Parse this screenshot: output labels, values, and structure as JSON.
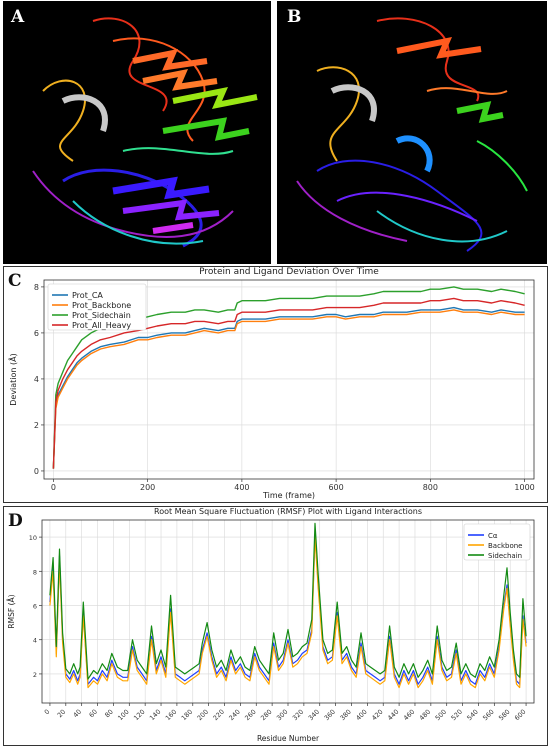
{
  "panels": {
    "a_label": "A",
    "b_label": "B",
    "c_label": "C",
    "d_label": "D"
  },
  "chart_data": [
    {
      "type": "line",
      "title": "Protein and Ligand Deviation Over Time",
      "xlabel": "Time (frame)",
      "ylabel": "Deviation (Å)",
      "xlim": [
        -20,
        1020
      ],
      "ylim": [
        -0.35,
        8.3
      ],
      "xticks": [
        "0",
        "200",
        "400",
        "600",
        "800",
        "1000"
      ],
      "yticks": [
        "0",
        "2",
        "4",
        "6",
        "8"
      ],
      "grid": true,
      "legend": "top-left",
      "x": [
        0,
        5,
        10,
        20,
        30,
        40,
        50,
        60,
        80,
        100,
        120,
        150,
        180,
        200,
        220,
        250,
        280,
        300,
        320,
        350,
        370,
        385,
        390,
        400,
        420,
        450,
        480,
        500,
        520,
        550,
        580,
        600,
        620,
        650,
        680,
        700,
        720,
        750,
        780,
        800,
        820,
        850,
        870,
        900,
        930,
        950,
        980,
        1000
      ],
      "series": [
        {
          "name": "Prot_CA",
          "color": "#1f77b4",
          "values": [
            0.1,
            2.8,
            3.3,
            3.7,
            4.1,
            4.4,
            4.7,
            4.9,
            5.2,
            5.4,
            5.5,
            5.6,
            5.8,
            5.8,
            5.9,
            6.0,
            6.0,
            6.1,
            6.2,
            6.1,
            6.2,
            6.2,
            6.5,
            6.6,
            6.6,
            6.6,
            6.7,
            6.7,
            6.7,
            6.7,
            6.8,
            6.8,
            6.7,
            6.8,
            6.8,
            6.9,
            6.9,
            6.9,
            7.0,
            7.0,
            7.0,
            7.1,
            7.0,
            7.0,
            6.9,
            7.0,
            6.9,
            6.9
          ]
        },
        {
          "name": "Prot_Backbone",
          "color": "#ff7f0e",
          "values": [
            0.1,
            2.7,
            3.2,
            3.6,
            4.0,
            4.3,
            4.6,
            4.8,
            5.1,
            5.3,
            5.4,
            5.5,
            5.7,
            5.7,
            5.8,
            5.9,
            5.9,
            6.0,
            6.1,
            6.0,
            6.1,
            6.1,
            6.4,
            6.5,
            6.5,
            6.5,
            6.6,
            6.6,
            6.6,
            6.6,
            6.7,
            6.7,
            6.6,
            6.7,
            6.7,
            6.8,
            6.8,
            6.8,
            6.9,
            6.9,
            6.9,
            7.0,
            6.9,
            6.9,
            6.8,
            6.9,
            6.8,
            6.8
          ]
        },
        {
          "name": "Prot_Sidechain",
          "color": "#2ca02c",
          "values": [
            0.1,
            3.3,
            3.8,
            4.3,
            4.8,
            5.1,
            5.4,
            5.7,
            6.0,
            6.2,
            6.3,
            6.5,
            6.6,
            6.7,
            6.8,
            6.9,
            6.9,
            7.0,
            7.0,
            6.9,
            7.0,
            7.0,
            7.3,
            7.4,
            7.4,
            7.4,
            7.5,
            7.5,
            7.5,
            7.5,
            7.6,
            7.6,
            7.6,
            7.6,
            7.7,
            7.8,
            7.8,
            7.8,
            7.8,
            7.9,
            7.9,
            8.0,
            7.9,
            7.9,
            7.8,
            7.9,
            7.8,
            7.7
          ]
        },
        {
          "name": "Prot_All_Heavy",
          "color": "#d62728",
          "values": [
            0.1,
            3.0,
            3.5,
            4.0,
            4.4,
            4.7,
            5.0,
            5.2,
            5.5,
            5.7,
            5.8,
            6.0,
            6.1,
            6.2,
            6.3,
            6.4,
            6.4,
            6.5,
            6.5,
            6.4,
            6.5,
            6.5,
            6.8,
            6.9,
            6.9,
            6.9,
            7.0,
            7.0,
            7.0,
            7.0,
            7.1,
            7.1,
            7.1,
            7.1,
            7.2,
            7.3,
            7.3,
            7.3,
            7.3,
            7.4,
            7.4,
            7.5,
            7.4,
            7.4,
            7.3,
            7.4,
            7.3,
            7.2
          ]
        }
      ]
    },
    {
      "type": "line",
      "title": "Root Mean Square Fluctuation (RMSF) Plot with Ligand Interactions",
      "xlabel": "Residue Number",
      "ylabel": "RMSF (Å)",
      "xlim": [
        -10,
        610
      ],
      "ylim": [
        0.3,
        11
      ],
      "xticks": [
        "0",
        "20",
        "40",
        "60",
        "80",
        "100",
        "120",
        "140",
        "160",
        "180",
        "200",
        "220",
        "240",
        "260",
        "280",
        "300",
        "320",
        "340",
        "360",
        "380",
        "400",
        "420",
        "440",
        "460",
        "480",
        "500",
        "520",
        "540",
        "560",
        "580",
        "600"
      ],
      "yticks": [
        "2",
        "4",
        "6",
        "8",
        "10"
      ],
      "grid": true,
      "legend": "top-right",
      "x": [
        0,
        4,
        8,
        12,
        16,
        20,
        25,
        30,
        35,
        38,
        42,
        48,
        55,
        60,
        66,
        72,
        78,
        85,
        92,
        98,
        104,
        110,
        116,
        122,
        128,
        134,
        140,
        146,
        152,
        158,
        164,
        170,
        176,
        182,
        188,
        192,
        198,
        204,
        210,
        216,
        222,
        228,
        234,
        240,
        246,
        252,
        258,
        264,
        270,
        276,
        282,
        288,
        294,
        300,
        306,
        312,
        318,
        324,
        330,
        334,
        338,
        344,
        350,
        356,
        362,
        368,
        374,
        380,
        386,
        392,
        398,
        404,
        410,
        416,
        422,
        428,
        434,
        440,
        446,
        452,
        458,
        464,
        470,
        476,
        482,
        488,
        494,
        500,
        506,
        512,
        518,
        524,
        530,
        536,
        542,
        548,
        554,
        560,
        566,
        572,
        576,
        580,
        584,
        588,
        592,
        596,
        600
      ],
      "series": [
        {
          "name": "Cα",
          "color": "#1f3fff",
          "values": [
            6.2,
            8.3,
            3.2,
            8.9,
            4.0,
            2.0,
            1.7,
            2.2,
            1.6,
            2.0,
            5.6,
            1.4,
            1.8,
            1.6,
            2.2,
            1.8,
            2.8,
            2.0,
            1.8,
            1.8,
            3.6,
            2.4,
            2.0,
            1.6,
            4.2,
            2.2,
            3.0,
            2.0,
            5.8,
            2.0,
            1.8,
            1.6,
            1.8,
            2.0,
            2.2,
            3.4,
            4.4,
            3.0,
            2.0,
            2.4,
            1.8,
            3.0,
            2.2,
            2.6,
            2.0,
            1.8,
            3.2,
            2.4,
            2.0,
            1.6,
            3.8,
            2.4,
            2.8,
            4.0,
            2.6,
            2.8,
            3.2,
            3.4,
            4.6,
            10.2,
            7.2,
            3.6,
            2.8,
            3.0,
            5.6,
            2.8,
            3.2,
            2.4,
            2.0,
            3.8,
            2.2,
            2.0,
            1.8,
            1.6,
            1.8,
            4.2,
            2.0,
            1.4,
            2.2,
            1.6,
            2.2,
            1.4,
            1.8,
            2.4,
            1.6,
            4.2,
            2.4,
            1.8,
            2.0,
            3.4,
            1.6,
            2.2,
            1.6,
            1.4,
            2.2,
            1.8,
            2.6,
            2.0,
            3.6,
            6.0,
            7.2,
            5.0,
            3.0,
            1.6,
            1.4,
            5.4,
            3.8
          ]
        },
        {
          "name": "Backbone",
          "color": "#ffa500",
          "values": [
            6.0,
            8.0,
            3.0,
            8.6,
            3.8,
            1.8,
            1.5,
            2.0,
            1.4,
            1.8,
            5.4,
            1.2,
            1.6,
            1.4,
            2.0,
            1.6,
            2.6,
            1.8,
            1.6,
            1.6,
            3.4,
            2.2,
            1.8,
            1.4,
            4.0,
            2.0,
            2.8,
            1.8,
            5.6,
            1.8,
            1.6,
            1.4,
            1.6,
            1.8,
            2.0,
            3.2,
            4.2,
            2.8,
            1.8,
            2.2,
            1.6,
            2.8,
            2.0,
            2.4,
            1.8,
            1.6,
            3.0,
            2.2,
            1.8,
            1.4,
            3.6,
            2.2,
            2.6,
            3.8,
            2.4,
            2.6,
            3.0,
            3.2,
            4.4,
            10.0,
            7.0,
            3.4,
            2.6,
            2.8,
            5.4,
            2.6,
            3.0,
            2.2,
            1.8,
            3.6,
            2.0,
            1.8,
            1.6,
            1.4,
            1.6,
            4.0,
            1.8,
            1.2,
            2.0,
            1.4,
            2.0,
            1.2,
            1.6,
            2.2,
            1.4,
            4.0,
            2.2,
            1.6,
            1.8,
            3.2,
            1.4,
            2.0,
            1.4,
            1.2,
            2.0,
            1.6,
            2.4,
            1.8,
            3.4,
            5.8,
            7.0,
            4.8,
            2.8,
            1.4,
            1.2,
            5.2,
            3.6
          ]
        },
        {
          "name": "Sidechain",
          "color": "#138a13",
          "values": [
            6.6,
            8.8,
            3.6,
            9.3,
            4.4,
            2.3,
            2.0,
            2.6,
            2.0,
            2.4,
            6.2,
            1.7,
            2.2,
            2.0,
            2.6,
            2.2,
            3.2,
            2.4,
            2.2,
            2.2,
            4.0,
            2.8,
            2.4,
            2.0,
            4.8,
            2.6,
            3.4,
            2.4,
            6.6,
            2.4,
            2.2,
            2.0,
            2.2,
            2.4,
            2.6,
            3.8,
            5.0,
            3.4,
            2.4,
            2.8,
            2.2,
            3.4,
            2.6,
            3.0,
            2.4,
            2.2,
            3.6,
            2.8,
            2.4,
            2.0,
            4.4,
            2.8,
            3.2,
            4.6,
            3.0,
            3.2,
            3.6,
            3.8,
            5.2,
            10.8,
            7.8,
            4.0,
            3.2,
            3.4,
            6.2,
            3.2,
            3.6,
            2.8,
            2.4,
            4.4,
            2.6,
            2.4,
            2.2,
            2.0,
            2.2,
            4.8,
            2.4,
            1.8,
            2.6,
            2.0,
            2.6,
            1.8,
            2.2,
            2.8,
            2.0,
            4.8,
            2.8,
            2.2,
            2.4,
            3.8,
            2.0,
            2.6,
            2.0,
            1.8,
            2.6,
            2.2,
            3.0,
            2.4,
            4.0,
            6.6,
            8.2,
            5.6,
            3.4,
            2.0,
            1.8,
            6.4,
            4.2
          ]
        }
      ]
    }
  ]
}
